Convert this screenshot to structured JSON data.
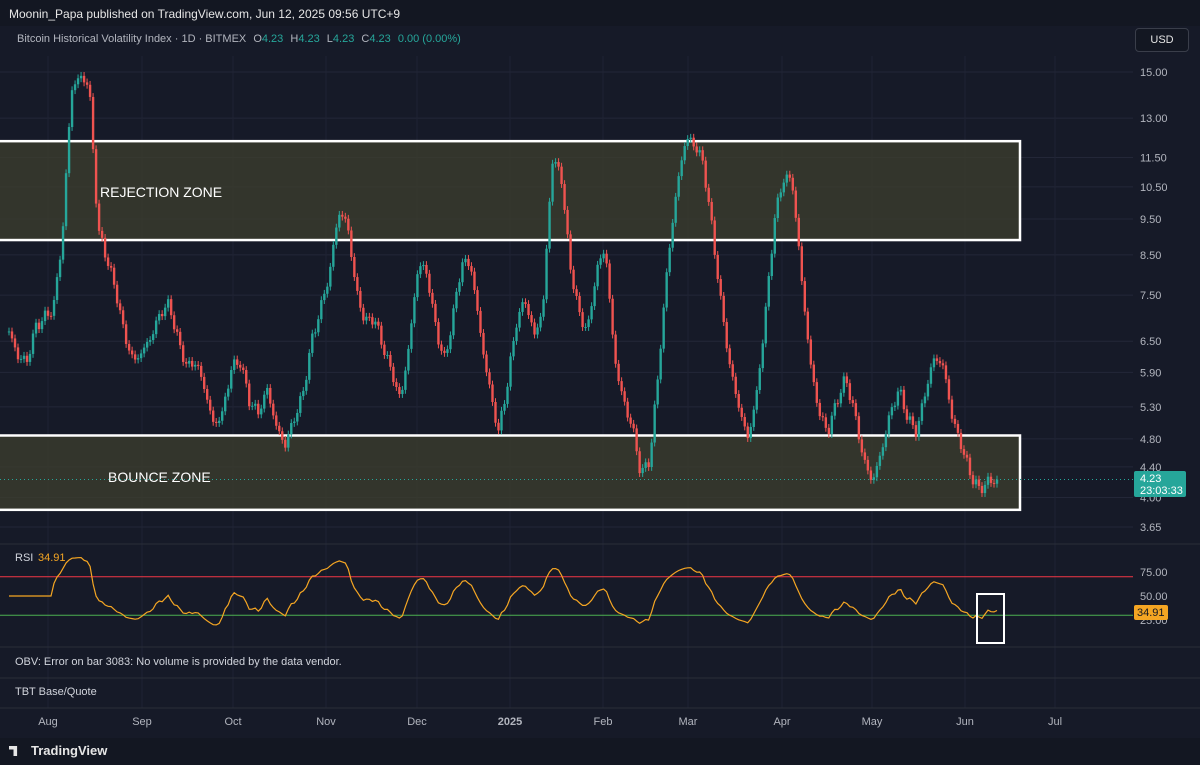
{
  "header": {
    "published": "Moonin_Papa published on TradingView.com, Jun 12, 2025 09:56 UTC+9"
  },
  "legend": {
    "symbol": "Bitcoin Historical Volatility Index · 1D · BITMEX",
    "o_label": "O",
    "o": "4.23",
    "h_label": "H",
    "h": "4.23",
    "l_label": "L",
    "l": "4.23",
    "c_label": "C",
    "c": "4.23",
    "change": "0.00 (0.00%)"
  },
  "currency_button": "USD",
  "footer": {
    "brand": "TradingView"
  },
  "colors": {
    "up": "#26a69a",
    "down": "#ef5350",
    "rsi": "#f5a623",
    "zone_fill": "#3a3c2e",
    "zone_border": "#ffffff"
  },
  "chart_data": {
    "type": "candlestick",
    "y_scale": "log",
    "y_ticks": [
      "15.00",
      "13.00",
      "11.50",
      "10.50",
      "9.50",
      "8.50",
      "7.50",
      "6.50",
      "5.90",
      "5.30",
      "4.80",
      "4.40",
      "4.00",
      "3.65"
    ],
    "y_range": [
      3.65,
      15.0
    ],
    "x_ticks": [
      "Aug",
      "Sep",
      "Oct",
      "Nov",
      "Dec",
      "2025",
      "Feb",
      "Mar",
      "Apr",
      "May",
      "Jun",
      "Jul"
    ],
    "last_price": "4.23",
    "countdown": "23:03:33",
    "close_series": [
      6.7,
      6.2,
      6.1,
      6.8,
      7.0,
      7.2,
      9.0,
      14.2,
      14.8,
      14.4,
      9.2,
      8.4,
      7.6,
      6.6,
      6.1,
      6.3,
      6.6,
      7.1,
      7.3,
      6.5,
      6.0,
      6.1,
      5.6,
      5.0,
      5.2,
      6.0,
      6.1,
      5.4,
      5.2,
      5.6,
      5.0,
      4.7,
      5.1,
      5.5,
      6.5,
      7.2,
      8.0,
      9.7,
      9.4,
      7.6,
      6.9,
      7.0,
      6.4,
      5.9,
      5.4,
      6.5,
      8.3,
      8.0,
      6.7,
      6.1,
      7.2,
      8.4,
      8.1,
      6.6,
      5.6,
      4.9,
      5.7,
      6.9,
      7.4,
      6.6,
      7.2,
      11.4,
      11.0,
      8.3,
      7.1,
      6.7,
      8.1,
      8.7,
      6.2,
      5.4,
      5.0,
      4.3,
      4.5,
      6.0,
      8.3,
      10.4,
      12.2,
      12.0,
      11.3,
      9.2,
      7.3,
      6.0,
      5.3,
      4.8,
      5.5,
      7.1,
      9.5,
      10.8,
      10.7,
      8.0,
      6.1,
      5.2,
      4.9,
      5.4,
      5.8,
      5.2,
      4.5,
      4.2,
      4.6,
      5.2,
      5.6,
      5.1,
      4.9,
      5.6,
      6.2,
      6.0,
      5.1,
      4.7,
      4.3,
      4.1,
      4.2,
      4.23
    ],
    "rsi": {
      "label": "RSI",
      "value": "34.91",
      "ticks": [
        "75.00",
        "50.00",
        "25.00"
      ],
      "upper": 70,
      "lower": 30
    },
    "annotations": {
      "rejection_zone": {
        "label": "REJECTION ZONE",
        "low": 8.9,
        "high": 12.1
      },
      "bounce_zone": {
        "label": "BOUNCE ZONE",
        "low": 3.85,
        "high": 4.85
      }
    },
    "notes": {
      "obv_error": "OBV: Error on bar 3083: No volume is provided by the data vendor.",
      "tbt": "TBT Base/Quote"
    }
  }
}
